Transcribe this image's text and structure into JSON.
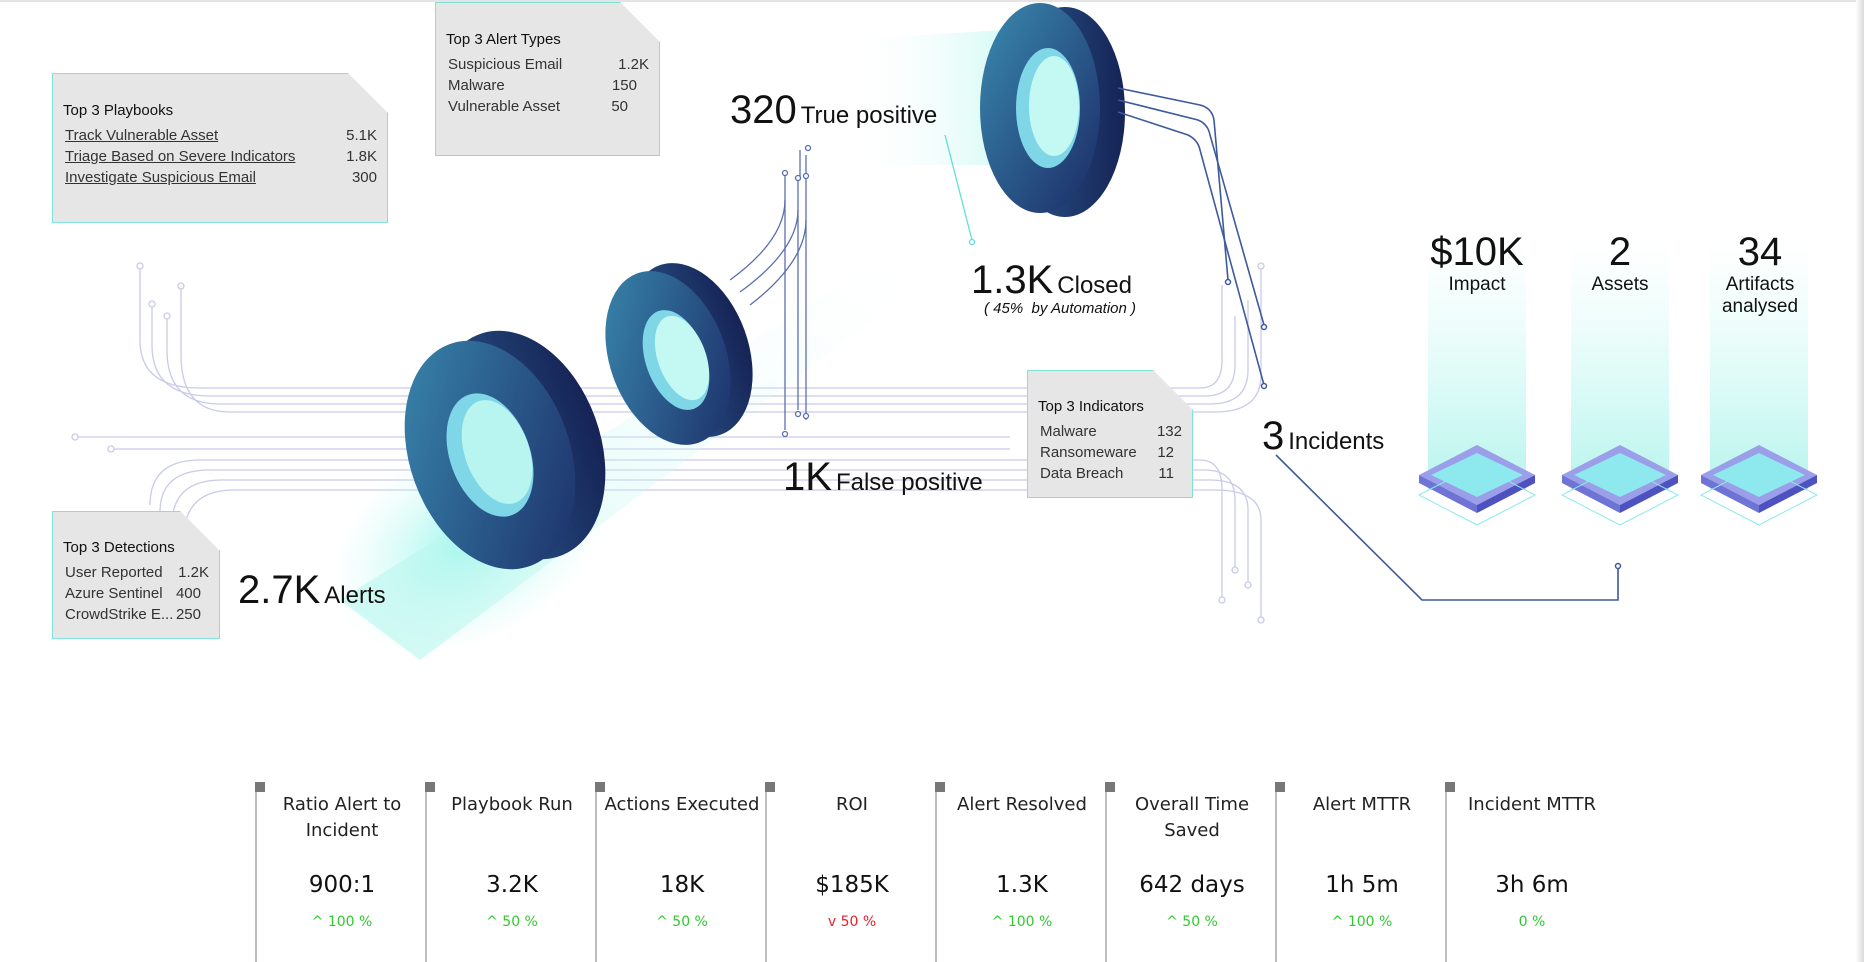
{
  "cards": {
    "playbooks": {
      "title": "Top 3 Playbooks",
      "rows": [
        {
          "label": "Track Vulnerable Asset",
          "value": "5.1K"
        },
        {
          "label": "Triage Based on Severe Indicators",
          "value": "1.8K"
        },
        {
          "label": "Investigate Suspicious Email",
          "value": "300"
        }
      ]
    },
    "alert_types": {
      "title": "Top 3 Alert Types",
      "rows": [
        {
          "label": "Suspicious Email",
          "value": "1.2K"
        },
        {
          "label": "Malware",
          "value": "150"
        },
        {
          "label": "Vulnerable Asset",
          "value": "50"
        }
      ]
    },
    "indicators": {
      "title": "Top 3 Indicators",
      "rows": [
        {
          "label": "Malware",
          "value": "132"
        },
        {
          "label": "Ransomeware",
          "value": "12"
        },
        {
          "label": "Data Breach",
          "value": "11"
        }
      ]
    },
    "detections": {
      "title": "Top 3 Detections",
      "rows": [
        {
          "label": "User Reported",
          "value": "1.2K"
        },
        {
          "label": "Azure Sentinel",
          "value": "400"
        },
        {
          "label": "CrowdStrike E...",
          "value": "250"
        }
      ]
    }
  },
  "flow": {
    "alerts": {
      "value": "2.7K",
      "label": "Alerts"
    },
    "true_positive": {
      "value": "320",
      "label": "True positive"
    },
    "closed": {
      "value": "1.3K",
      "label": "Closed",
      "note": "( 45%  by Automation )"
    },
    "false_positive": {
      "value": "1K",
      "label": "False positive"
    },
    "incidents": {
      "value": "3",
      "label": "Incidents"
    }
  },
  "kpis": [
    {
      "value": "$10K",
      "label": "Impact"
    },
    {
      "value": "2",
      "label": "Assets"
    },
    {
      "value": "34",
      "label": "Artifacts analysed"
    }
  ],
  "metrics": [
    {
      "label": "Ratio Alert to Incident",
      "value": "900:1",
      "arrow": "^",
      "delta": "100 %",
      "trend": "up"
    },
    {
      "label": "Playbook Run",
      "value": "3.2K",
      "arrow": "^",
      "delta": "50 %",
      "trend": "up"
    },
    {
      "label": "Actions Executed",
      "value": "18K",
      "arrow": "^",
      "delta": "50 %",
      "trend": "up"
    },
    {
      "label": "ROI",
      "value": "$185K",
      "arrow": "v",
      "delta": "50 %",
      "trend": "down"
    },
    {
      "label": "Alert Resolved",
      "value": "1.3K",
      "arrow": "^",
      "delta": "100 %",
      "trend": "up"
    },
    {
      "label": "Overall Time Saved",
      "value": "642 days",
      "arrow": "^",
      "delta": "50 %",
      "trend": "up"
    },
    {
      "label": "Alert MTTR",
      "value": "1h 5m",
      "arrow": "^",
      "delta": "100 %",
      "trend": "up"
    },
    {
      "label": "Incident MTTR",
      "value": "3h 6m",
      "arrow": "",
      "delta": "0 %",
      "trend": "flat"
    }
  ],
  "colors": {
    "accent_teal": "#7fe3d8",
    "ring_dark": "#1e2f6e",
    "ring_mid": "#2a6f9a",
    "line": "#3d5a9c",
    "up": "#32c832",
    "down": "#e8202a"
  }
}
